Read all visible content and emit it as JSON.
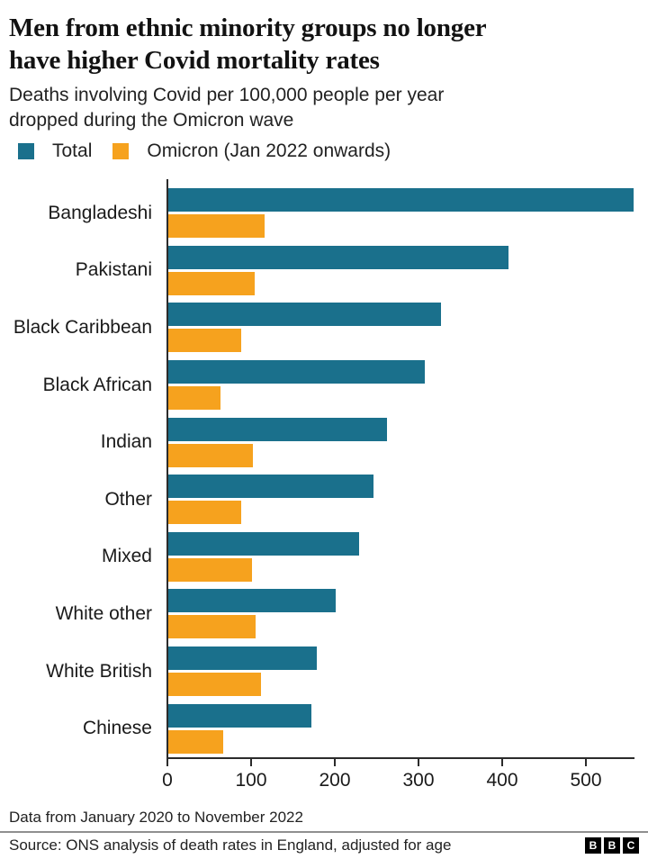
{
  "header": {
    "title": "Men from ethnic minority groups no longer have higher Covid mortality rates",
    "title_lines": [
      "Men from ethnic minority groups no longer",
      "have higher Covid mortality rates"
    ],
    "subtitle": "Deaths involving Covid per 100,000 people per year dropped during the Omicron wave",
    "subtitle_lines": [
      "Deaths involving Covid per 100,000 people per year",
      "dropped during the Omicron wave"
    ]
  },
  "legend": [
    {
      "label": "Total",
      "color": "#1A708C"
    },
    {
      "label": "Omicron (Jan 2022 onwards)",
      "color": "#F6A21E"
    }
  ],
  "chart_data": {
    "type": "bar",
    "orientation": "horizontal",
    "title": "Men from ethnic minority groups no longer have higher Covid mortality rates",
    "subtitle": "Deaths involving Covid per 100,000 people per year dropped during the Omicron wave",
    "categories": [
      "Bangladeshi",
      "Pakistani",
      "Black Caribbean",
      "Black African",
      "Indian",
      "Other",
      "Mixed",
      "White other",
      "White British",
      "Chinese"
    ],
    "series": [
      {
        "name": "Total",
        "color": "#1A708C",
        "values": [
          556,
          406,
          326,
          306,
          261,
          245,
          228,
          200,
          177,
          171
        ]
      },
      {
        "name": "Omicron (Jan 2022 onwards)",
        "color": "#F6A21E",
        "values": [
          115,
          103,
          87,
          62,
          101,
          87,
          100,
          104,
          111,
          66
        ]
      }
    ],
    "xlabel": "",
    "ylabel": "",
    "xlim": [
      0,
      560
    ],
    "xticks": [
      0,
      100,
      200,
      300,
      400,
      500
    ],
    "grid": false,
    "legend_position": "top"
  },
  "footer": {
    "note": "Data from January 2020 to November 2022",
    "source": "Source: ONS analysis of death rates in England, adjusted for age",
    "logo_letters": [
      "B",
      "B",
      "C"
    ]
  }
}
